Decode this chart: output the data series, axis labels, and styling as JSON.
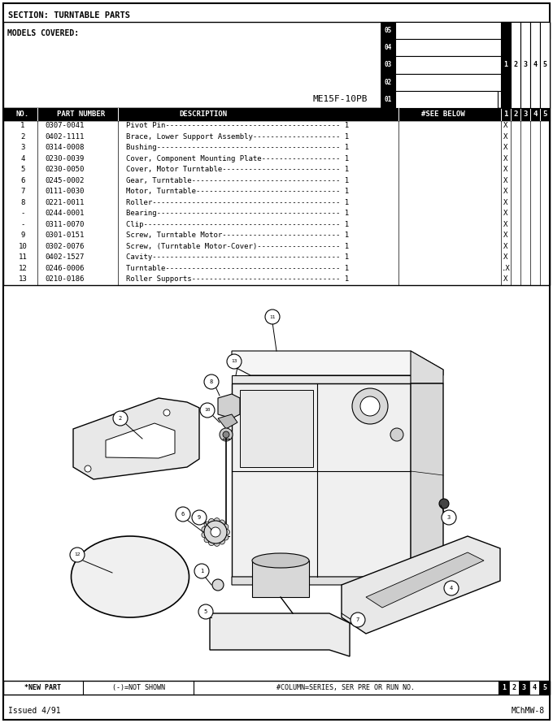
{
  "title_section": "SECTION: TURNTABLE PARTS",
  "models_covered": "MODELS COVERED:",
  "model_name": "ME15F-10PB",
  "parts": [
    [
      "1",
      "0307-0041",
      "Pivot Pin----------------------------------------",
      "1",
      "X",
      ""
    ],
    [
      "2",
      "0402-1111",
      "Brace, Lower Support Assembly--------------------",
      "1",
      "X",
      ""
    ],
    [
      "3",
      "0314-0008",
      "Bushing------------------------------------------",
      "1",
      "X",
      ""
    ],
    [
      "4",
      "0230-0039",
      "Cover, Component Mounting Plate------------------",
      "1",
      "X",
      ""
    ],
    [
      "5",
      "0230-0050",
      "Cover, Motor Turntable---------------------------",
      "1",
      "X",
      ""
    ],
    [
      "6",
      "0245-0002",
      "Gear, Turntable----------------------------------",
      "1",
      "X",
      ""
    ],
    [
      "7",
      "0111-0030",
      "Motor, Turntable---------------------------------",
      "1",
      "X",
      ""
    ],
    [
      "8",
      "0221-0011",
      "Roller-------------------------------------------",
      "1",
      "X",
      ""
    ],
    [
      "-",
      "0244-0001",
      "Bearing------------------------------------------",
      "1",
      "X",
      ""
    ],
    [
      "-",
      "0311-0070",
      "Clip---------------------------------------------",
      "1",
      "X",
      ""
    ],
    [
      "9",
      "0301-0151",
      "Screw, Turntable Motor---------------------------",
      "1",
      "X",
      ""
    ],
    [
      "10",
      "0302-0076",
      "Screw, (Turntable Motor-Cover)-------------------",
      "1",
      "X",
      ""
    ],
    [
      "11",
      "0402-1527",
      "Cavity-------------------------------------------",
      "1",
      "X",
      ""
    ],
    [
      "12",
      "0246-0006",
      "Turntable----------------------------------------",
      "1",
      ".X",
      ""
    ],
    [
      "13",
      "0210-0186",
      "Roller Supports----------------------------------",
      "1",
      "X",
      ""
    ]
  ],
  "footer_left1": "*NEW PART",
  "footer_left2": "(-)=NOT SHOWN",
  "footer_mid": "#COLUMN=SERIES, SER PRE OR RUN NO.",
  "footer_nums": [
    "1",
    "2",
    "3",
    "4",
    "5"
  ],
  "issued": "Issued 4/91",
  "doc_ref": "MChMW-8",
  "series_tabs": [
    "05",
    "04",
    "03",
    "02",
    "01"
  ]
}
